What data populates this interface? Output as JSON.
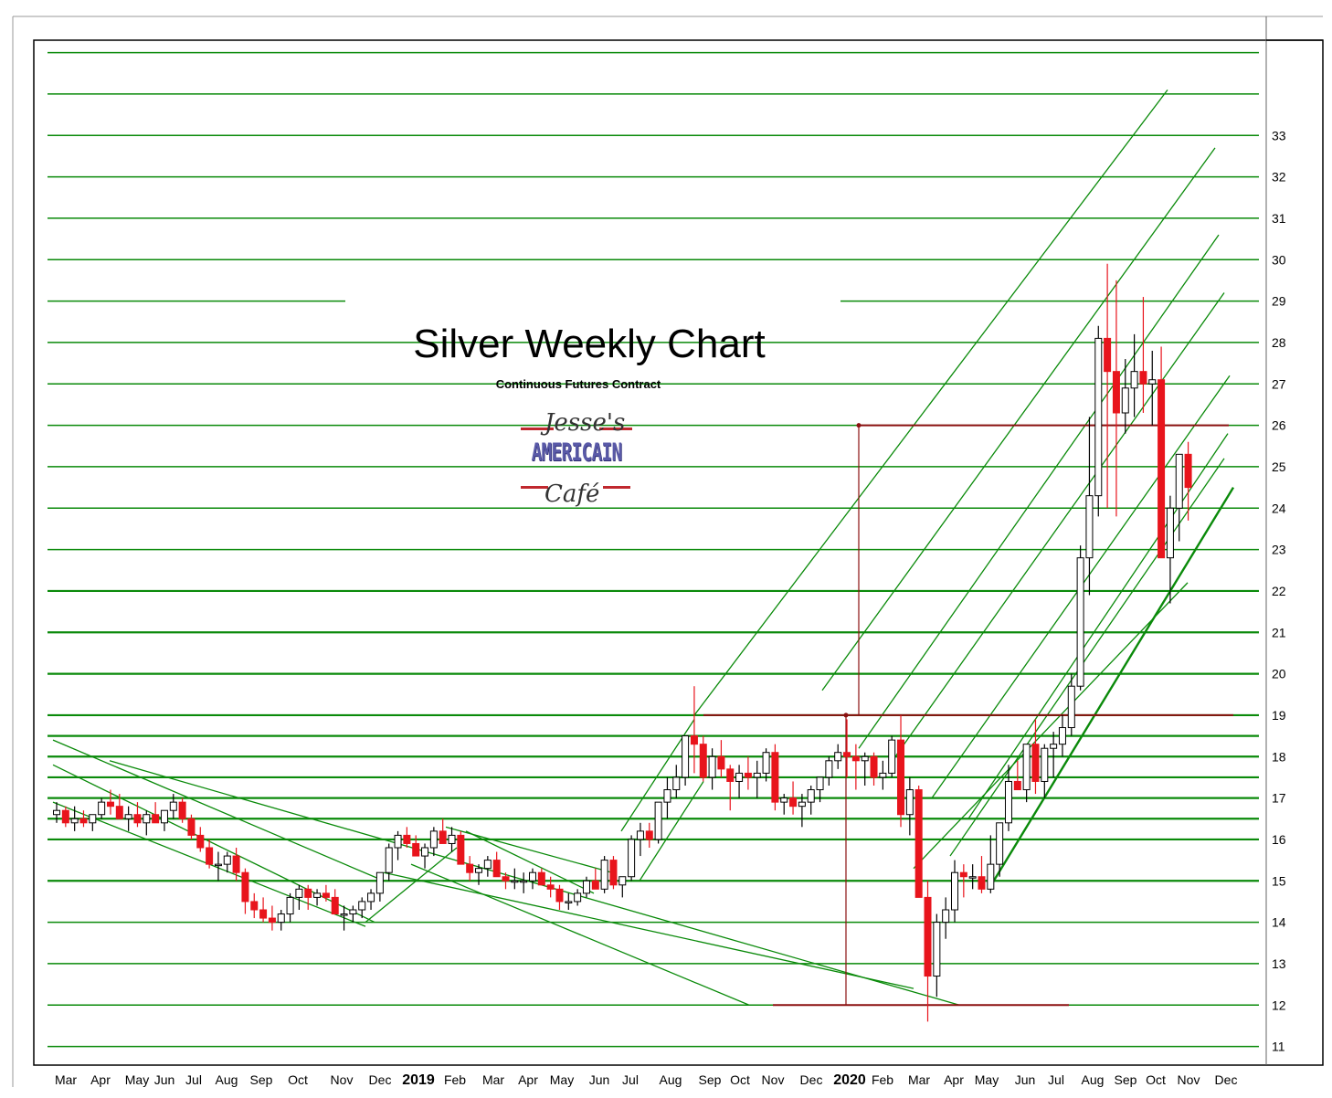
{
  "chart_data": {
    "type": "candlestick",
    "title": "Silver Weekly Chart",
    "subtitle": "Continuous Futures Contract",
    "logo_text": {
      "top": "Jesse's",
      "middle": "AMERICAIN",
      "bottom": "Café"
    },
    "y_ticks": [
      11,
      12,
      13,
      14,
      15,
      16,
      17,
      18,
      19,
      20,
      21,
      22,
      23,
      24,
      25,
      26,
      27,
      28,
      29,
      30,
      31,
      32,
      33
    ],
    "ylim": [
      10.55,
      35.3
    ],
    "x_labels": [
      "Mar",
      "Apr",
      "May",
      "Jun",
      "Jul",
      "Aug",
      "Sep",
      "Oct",
      "Nov",
      "Dec",
      "2019",
      "Feb",
      "Mar",
      "Apr",
      "May",
      "Jun",
      "Jul",
      "Aug",
      "Sep",
      "Oct",
      "Nov",
      "Dec",
      "2020",
      "Feb",
      "Mar",
      "Apr",
      "May",
      "Jun",
      "Jul",
      "Aug",
      "Sep",
      "Oct",
      "Nov",
      "Dec"
    ],
    "x_label_bold": [
      "2019",
      "2020"
    ],
    "up_color": "#ffffff",
    "down_color": "#e8141c",
    "wick_color": "#000000",
    "grid_color": "#0a8a0a",
    "resistance_color": "#8b1010",
    "horizontal_levels": [
      11,
      12,
      13,
      14,
      15,
      16,
      16.5,
      17,
      17.5,
      18,
      18.5,
      19,
      20,
      21,
      22,
      23,
      24,
      25,
      26,
      27,
      28,
      29,
      30,
      31,
      32,
      33,
      34,
      35
    ],
    "resistance_levels": [
      12,
      19,
      26
    ],
    "weekly_candles": [
      [
        16.6,
        16.9,
        16.4,
        16.7
      ],
      [
        16.7,
        16.8,
        16.3,
        16.4
      ],
      [
        16.4,
        16.8,
        16.2,
        16.5
      ],
      [
        16.5,
        16.7,
        16.3,
        16.4
      ],
      [
        16.4,
        16.6,
        16.2,
        16.6
      ],
      [
        16.6,
        17.0,
        16.5,
        16.9
      ],
      [
        16.9,
        17.2,
        16.6,
        16.8
      ],
      [
        16.8,
        17.1,
        16.6,
        16.5
      ],
      [
        16.5,
        16.8,
        16.2,
        16.6
      ],
      [
        16.6,
        16.9,
        16.3,
        16.4
      ],
      [
        16.4,
        16.7,
        16.1,
        16.6
      ],
      [
        16.6,
        16.9,
        16.4,
        16.4
      ],
      [
        16.4,
        16.7,
        16.2,
        16.7
      ],
      [
        16.7,
        17.1,
        16.5,
        16.9
      ],
      [
        16.9,
        17.0,
        16.4,
        16.5
      ],
      [
        16.5,
        16.6,
        16.0,
        16.1
      ],
      [
        16.1,
        16.3,
        15.7,
        15.8
      ],
      [
        15.8,
        16.0,
        15.3,
        15.4
      ],
      [
        15.4,
        15.7,
        15.0,
        15.4
      ],
      [
        15.4,
        15.7,
        15.2,
        15.6
      ],
      [
        15.6,
        15.8,
        15.0,
        15.2
      ],
      [
        15.2,
        15.3,
        14.2,
        14.5
      ],
      [
        14.5,
        14.7,
        14.1,
        14.3
      ],
      [
        14.3,
        14.6,
        14.0,
        14.1
      ],
      [
        14.1,
        14.4,
        13.8,
        14.0
      ],
      [
        14.0,
        14.3,
        13.8,
        14.2
      ],
      [
        14.2,
        14.7,
        14.0,
        14.6
      ],
      [
        14.6,
        14.9,
        14.3,
        14.8
      ],
      [
        14.8,
        14.9,
        14.3,
        14.6
      ],
      [
        14.6,
        14.8,
        14.4,
        14.7
      ],
      [
        14.7,
        14.9,
        14.5,
        14.6
      ],
      [
        14.6,
        14.8,
        14.3,
        14.2
      ],
      [
        14.2,
        14.4,
        13.8,
        14.2
      ],
      [
        14.2,
        14.4,
        14.0,
        14.3
      ],
      [
        14.3,
        14.6,
        14.1,
        14.5
      ],
      [
        14.5,
        14.8,
        14.3,
        14.7
      ],
      [
        14.7,
        15.1,
        14.5,
        15.2
      ],
      [
        15.2,
        15.9,
        15.0,
        15.8
      ],
      [
        15.8,
        16.2,
        15.5,
        16.1
      ],
      [
        16.1,
        16.3,
        15.8,
        15.9
      ],
      [
        15.9,
        16.1,
        15.6,
        15.6
      ],
      [
        15.6,
        15.9,
        15.3,
        15.8
      ],
      [
        15.8,
        16.3,
        15.6,
        16.2
      ],
      [
        16.2,
        16.5,
        15.9,
        15.9
      ],
      [
        15.9,
        16.3,
        15.7,
        16.1
      ],
      [
        16.1,
        16.2,
        15.5,
        15.4
      ],
      [
        15.4,
        15.6,
        15.0,
        15.2
      ],
      [
        15.2,
        15.4,
        14.9,
        15.3
      ],
      [
        15.3,
        15.6,
        15.1,
        15.5
      ],
      [
        15.5,
        15.7,
        15.2,
        15.1
      ],
      [
        15.1,
        15.2,
        14.8,
        15.0
      ],
      [
        15.0,
        15.3,
        14.8,
        15.0
      ],
      [
        15.0,
        15.2,
        14.7,
        15.0
      ],
      [
        15.0,
        15.3,
        14.8,
        15.2
      ],
      [
        15.2,
        15.3,
        14.9,
        14.9
      ],
      [
        14.9,
        15.1,
        14.6,
        14.8
      ],
      [
        14.8,
        14.9,
        14.3,
        14.5
      ],
      [
        14.5,
        14.7,
        14.3,
        14.5
      ],
      [
        14.5,
        14.8,
        14.4,
        14.7
      ],
      [
        14.7,
        15.1,
        14.6,
        15.0
      ],
      [
        15.0,
        15.3,
        14.8,
        14.8
      ],
      [
        14.8,
        15.6,
        14.7,
        15.5
      ],
      [
        15.5,
        15.6,
        14.8,
        14.9
      ],
      [
        14.9,
        15.1,
        14.6,
        15.1
      ],
      [
        15.1,
        16.1,
        15.0,
        16.0
      ],
      [
        16.0,
        16.4,
        15.6,
        16.2
      ],
      [
        16.2,
        16.4,
        15.8,
        16.0
      ],
      [
        16.0,
        16.9,
        15.9,
        16.9
      ],
      [
        16.9,
        17.5,
        16.5,
        17.2
      ],
      [
        17.2,
        17.8,
        17.0,
        17.5
      ],
      [
        17.5,
        18.5,
        17.3,
        18.5
      ],
      [
        18.5,
        19.7,
        17.6,
        18.3
      ],
      [
        18.3,
        18.5,
        17.4,
        17.5
      ],
      [
        17.5,
        18.2,
        17.2,
        18.0
      ],
      [
        18.0,
        18.4,
        17.5,
        17.7
      ],
      [
        17.7,
        17.8,
        16.7,
        17.4
      ],
      [
        17.4,
        17.8,
        17.0,
        17.6
      ],
      [
        17.6,
        18.0,
        17.2,
        17.5
      ],
      [
        17.5,
        17.9,
        17.0,
        17.6
      ],
      [
        17.6,
        18.2,
        17.4,
        18.1
      ],
      [
        18.1,
        18.3,
        16.7,
        16.9
      ],
      [
        16.9,
        17.1,
        16.6,
        17.0
      ],
      [
        17.0,
        17.4,
        16.6,
        16.8
      ],
      [
        16.8,
        17.1,
        16.3,
        16.9
      ],
      [
        16.9,
        17.3,
        16.6,
        17.2
      ],
      [
        17.2,
        17.5,
        16.9,
        17.5
      ],
      [
        17.5,
        18.0,
        17.3,
        17.9
      ],
      [
        17.9,
        18.3,
        17.7,
        18.1
      ],
      [
        18.1,
        18.9,
        17.5,
        18.0
      ],
      [
        18.0,
        18.3,
        17.2,
        17.9
      ],
      [
        17.9,
        18.1,
        17.3,
        18.0
      ],
      [
        18.0,
        18.1,
        17.3,
        17.5
      ],
      [
        17.5,
        17.9,
        17.2,
        17.6
      ],
      [
        17.6,
        18.5,
        17.5,
        18.4
      ],
      [
        18.4,
        19.0,
        16.3,
        16.6
      ],
      [
        16.6,
        17.5,
        16.1,
        17.2
      ],
      [
        17.2,
        17.3,
        14.7,
        14.6
      ],
      [
        14.6,
        15.0,
        11.6,
        12.7
      ],
      [
        12.7,
        14.2,
        12.2,
        14.0
      ],
      [
        14.0,
        14.6,
        13.6,
        14.3
      ],
      [
        14.3,
        15.5,
        14.0,
        15.2
      ],
      [
        15.2,
        15.4,
        14.6,
        15.1
      ],
      [
        15.1,
        15.4,
        14.8,
        15.1
      ],
      [
        15.1,
        15.6,
        14.7,
        14.8
      ],
      [
        14.8,
        16.1,
        14.7,
        15.4
      ],
      [
        15.4,
        16.4,
        15.1,
        16.4
      ],
      [
        16.4,
        17.8,
        16.2,
        17.4
      ],
      [
        17.4,
        17.9,
        17.2,
        17.2
      ],
      [
        17.2,
        18.2,
        16.9,
        18.3
      ],
      [
        18.3,
        18.9,
        17.1,
        17.4
      ],
      [
        17.4,
        18.3,
        17.0,
        18.2
      ],
      [
        18.2,
        18.6,
        17.5,
        18.3
      ],
      [
        18.3,
        19.0,
        18.0,
        18.7
      ],
      [
        18.7,
        20.0,
        18.5,
        19.7
      ],
      [
        19.7,
        23.1,
        19.6,
        22.8
      ],
      [
        22.8,
        26.2,
        21.9,
        24.3
      ],
      [
        24.3,
        28.4,
        23.8,
        28.1
      ],
      [
        28.1,
        29.9,
        24.0,
        27.3
      ],
      [
        27.3,
        29.5,
        23.8,
        26.3
      ],
      [
        26.3,
        27.6,
        25.8,
        26.9
      ],
      [
        26.9,
        28.2,
        26.2,
        27.3
      ],
      [
        27.3,
        29.1,
        26.3,
        27.0
      ],
      [
        27.0,
        27.8,
        26.0,
        27.1
      ],
      [
        27.1,
        27.9,
        23.6,
        22.8
      ],
      [
        22.8,
        24.3,
        21.7,
        24.0
      ],
      [
        24.0,
        25.2,
        23.2,
        25.3
      ],
      [
        25.3,
        25.6,
        23.7,
        24.5
      ]
    ]
  }
}
